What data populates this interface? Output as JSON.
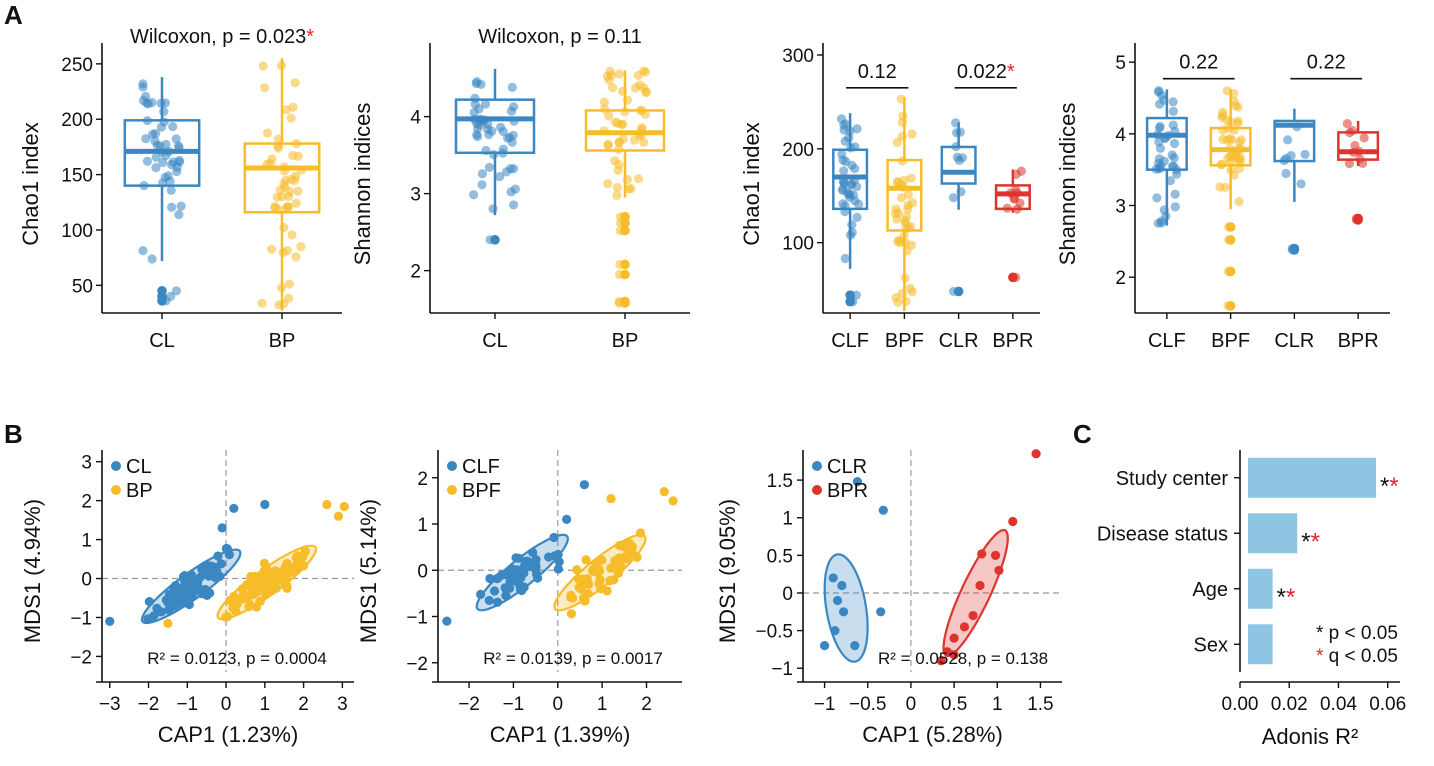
{
  "colors": {
    "CL": "#3a87c2",
    "BP": "#f6bc29",
    "CLF": "#3a87c2",
    "BPF": "#f6bc29",
    "CLR": "#3a87c2",
    "BPR": "#dd352d",
    "bar": "#8ec5e3",
    "sig": "#e8232a",
    "ref": "#999999"
  },
  "panel_labels": {
    "A": "A",
    "B": "B",
    "C": "C"
  },
  "chart_data": [
    {
      "id": "A1",
      "type": "box",
      "ylabel": "Chao1 index",
      "title_text": "Wilcoxon, p = 0.023",
      "title_star": "*",
      "ylim": [
        25,
        258
      ],
      "yticks": [
        50,
        100,
        150,
        200,
        250
      ],
      "groups": [
        {
          "label": "CL",
          "color": "CL",
          "q1": 140,
          "median": 171,
          "q3": 199,
          "whisker_low": 72,
          "whisker_high": 238,
          "outliers": [
            45,
            40,
            36
          ],
          "points": 48,
          "spread": [
            72,
            238
          ],
          "seed": 11
        },
        {
          "label": "BP",
          "color": "BP",
          "q1": 116,
          "median": 156,
          "q3": 178,
          "whisker_low": 27,
          "whisker_high": 255,
          "outliers": [],
          "points": 52,
          "spread": [
            27,
            255
          ],
          "seed": 23
        }
      ],
      "brackets": []
    },
    {
      "id": "A2",
      "type": "box",
      "ylabel": "Shannon indices",
      "title_text": "Wilcoxon, p = 0.11",
      "title_star": "",
      "ylim": [
        1.45,
        4.8
      ],
      "yticks": [
        2,
        3,
        4
      ],
      "groups": [
        {
          "label": "CL",
          "color": "CL",
          "q1": 3.53,
          "median": 3.97,
          "q3": 4.22,
          "whisker_low": 2.72,
          "whisker_high": 4.62,
          "outliers": [
            2.4
          ],
          "points": 48,
          "spread": [
            2.72,
            4.62
          ],
          "seed": 37
        },
        {
          "label": "BP",
          "color": "BP",
          "q1": 3.56,
          "median": 3.79,
          "q3": 4.08,
          "whisker_low": 2.95,
          "whisker_high": 4.6,
          "outliers": [
            2.7,
            2.62,
            2.52,
            2.08,
            1.95,
            1.6,
            1.58
          ],
          "points": 50,
          "spread": [
            2.95,
            4.6
          ],
          "seed": 41
        }
      ],
      "brackets": []
    },
    {
      "id": "A3",
      "type": "box",
      "ylabel": "Chao1 index",
      "title_text": "",
      "title_star": "",
      "ylim": [
        25,
        300
      ],
      "yticks": [
        100,
        200,
        300
      ],
      "groups": [
        {
          "label": "CLF",
          "color": "CLF",
          "q1": 136,
          "median": 170,
          "q3": 199,
          "whisker_low": 72,
          "whisker_high": 238,
          "outliers": [
            44,
            37
          ],
          "points": 40,
          "spread": [
            72,
            238
          ],
          "seed": 53
        },
        {
          "label": "BPF",
          "color": "BPF",
          "q1": 113,
          "median": 158,
          "q3": 188,
          "whisker_low": 27,
          "whisker_high": 255,
          "outliers": [],
          "points": 42,
          "spread": [
            27,
            255
          ],
          "seed": 67
        },
        {
          "label": "CLR",
          "color": "CLR",
          "q1": 163,
          "median": 175,
          "q3": 202,
          "whisker_low": 135,
          "whisker_high": 228,
          "outliers": [
            48
          ],
          "points": 9,
          "spread": [
            135,
            228
          ],
          "seed": 71
        },
        {
          "label": "BPR",
          "color": "BPR",
          "q1": 136,
          "median": 152,
          "q3": 161,
          "whisker_low": 132,
          "whisker_high": 178,
          "outliers": [
            63
          ],
          "points": 10,
          "spread": [
            132,
            178
          ],
          "seed": 83
        }
      ],
      "brackets": [
        {
          "from": 0,
          "to": 1,
          "y": 265,
          "text": "0.12",
          "star": ""
        },
        {
          "from": 2,
          "to": 3,
          "y": 265,
          "text": "0.022",
          "star": "*"
        }
      ]
    },
    {
      "id": "A4",
      "type": "box",
      "ylabel": "Shannon indices",
      "title_text": "",
      "title_star": "",
      "ylim": [
        1.5,
        5.1
      ],
      "yticks": [
        2,
        3,
        4,
        5
      ],
      "groups": [
        {
          "label": "CLF",
          "color": "CLF",
          "q1": 3.5,
          "median": 3.98,
          "q3": 4.22,
          "whisker_low": 2.72,
          "whisker_high": 4.62,
          "outliers": [],
          "points": 40,
          "spread": [
            2.72,
            4.62
          ],
          "seed": 97
        },
        {
          "label": "BPF",
          "color": "BPF",
          "q1": 3.56,
          "median": 3.78,
          "q3": 4.08,
          "whisker_low": 2.95,
          "whisker_high": 4.62,
          "outliers": [
            2.7,
            2.52,
            2.08,
            1.6
          ],
          "points": 42,
          "spread": [
            2.95,
            4.62
          ],
          "seed": 101
        },
        {
          "label": "CLR",
          "color": "CLR",
          "q1": 3.62,
          "median": 4.12,
          "q3": 4.18,
          "whisker_low": 3.05,
          "whisker_high": 4.35,
          "outliers": [
            2.4,
            2.38
          ],
          "points": 8,
          "spread": [
            3.05,
            4.35
          ],
          "seed": 113
        },
        {
          "label": "BPR",
          "color": "BPR",
          "q1": 3.64,
          "median": 3.75,
          "q3": 4.02,
          "whisker_low": 3.55,
          "whisker_high": 4.18,
          "outliers": [
            2.82,
            2.8
          ],
          "points": 10,
          "spread": [
            3.55,
            4.18
          ],
          "seed": 127
        }
      ],
      "brackets": [
        {
          "from": 0,
          "to": 1,
          "y": 4.77,
          "text": "0.22",
          "star": ""
        },
        {
          "from": 2,
          "to": 3,
          "y": 4.77,
          "text": "0.22",
          "star": ""
        }
      ]
    },
    {
      "id": "B1",
      "type": "scatter",
      "xlabel": "CAP1 (1.23%)",
      "ylabel": "MDS1 (4.94%)",
      "xlim": [
        -3.2,
        3.3
      ],
      "ylim": [
        -2.4,
        3.3
      ],
      "xticks": [
        -3,
        -2,
        -1,
        0,
        1,
        2,
        3
      ],
      "yticks": [
        -2,
        -1,
        0,
        1,
        2,
        3
      ],
      "stat_text": "R² = 0.0123, p = 0.0004",
      "legend": [
        "CL",
        "BP"
      ],
      "groups": [
        {
          "label": "CL",
          "color": "CL",
          "n": 95,
          "center": [
            -0.9,
            -0.2
          ],
          "direction": [
            1,
            0.72
          ],
          "spread_major": 0.95,
          "spread_minor": 0.33,
          "seed": 5,
          "extra_points": [
            [
              -3.0,
              -1.1
            ],
            [
              1.0,
              1.9
            ],
            [
              0.2,
              1.8
            ],
            [
              -0.1,
              1.3
            ]
          ],
          "ellipse": {
            "cx": -0.9,
            "cy": -0.2,
            "rx": 1.55,
            "ry": 0.33,
            "angle_deg": 36
          }
        },
        {
          "label": "BP",
          "color": "BP",
          "n": 95,
          "center": [
            1.05,
            -0.1
          ],
          "direction": [
            1,
            0.72
          ],
          "spread_major": 0.95,
          "spread_minor": 0.33,
          "seed": 9,
          "extra_points": [
            [
              3.05,
              1.85
            ],
            [
              2.9,
              1.6
            ],
            [
              -1.5,
              -1.15
            ],
            [
              2.6,
              1.9
            ]
          ],
          "ellipse": {
            "cx": 1.05,
            "cy": -0.1,
            "rx": 1.55,
            "ry": 0.33,
            "angle_deg": 36
          }
        }
      ]
    },
    {
      "id": "B2",
      "type": "scatter",
      "xlabel": "CAP1 (1.39%)",
      "ylabel": "MDS1 (5.14%)",
      "xlim": [
        -2.7,
        2.8
      ],
      "ylim": [
        -2.2,
        2.6
      ],
      "xticks": [
        -2,
        -1,
        0,
        1,
        2
      ],
      "yticks": [
        -2,
        -1,
        0,
        1,
        2
      ],
      "stat_text": "R² = 0.0139, p = 0.0017",
      "legend": [
        "CLF",
        "BPF"
      ],
      "groups": [
        {
          "label": "CLF",
          "color": "CLF",
          "n": 50,
          "center": [
            -0.8,
            -0.05
          ],
          "direction": [
            1,
            0.78
          ],
          "spread_major": 0.85,
          "spread_minor": 0.3,
          "seed": 13,
          "extra_points": [
            [
              -2.5,
              -1.1
            ],
            [
              0.6,
              1.85
            ],
            [
              0.2,
              1.1
            ]
          ],
          "ellipse": {
            "cx": -0.8,
            "cy": -0.05,
            "rx": 1.3,
            "ry": 0.3,
            "angle_deg": 40
          }
        },
        {
          "label": "BPF",
          "color": "BPF",
          "n": 50,
          "center": [
            0.95,
            -0.05
          ],
          "direction": [
            1,
            0.78
          ],
          "spread_major": 0.85,
          "spread_minor": 0.3,
          "seed": 17,
          "extra_points": [
            [
              2.6,
              1.5
            ],
            [
              2.4,
              1.7
            ],
            [
              1.2,
              1.55
            ]
          ],
          "ellipse": {
            "cx": 0.95,
            "cy": -0.05,
            "rx": 1.3,
            "ry": 0.3,
            "angle_deg": 40
          }
        }
      ]
    },
    {
      "id": "B3",
      "type": "scatter",
      "xlabel": "CAP1 (5.28%)",
      "ylabel": "MDS1 (9.05%)",
      "xlim": [
        -1.25,
        1.75
      ],
      "ylim": [
        -1.05,
        1.9
      ],
      "xticks": [
        -1.0,
        -0.5,
        0.0,
        0.5,
        1.0,
        1.5
      ],
      "yticks": [
        -1.0,
        -0.5,
        0.0,
        0.5,
        1.0,
        1.5
      ],
      "stat_text": "R² = 0.0528, p = 0.138",
      "legend": [
        "CLR",
        "BPR"
      ],
      "groups": [
        {
          "label": "CLR",
          "color": "CLR",
          "n": 0,
          "center": [
            -0.75,
            -0.2
          ],
          "direction": [
            0,
            1
          ],
          "spread_major": 0,
          "spread_minor": 0,
          "seed": 0,
          "extra_points": [
            [
              -0.62,
              1.48
            ],
            [
              -0.32,
              1.1
            ],
            [
              -0.9,
              0.2
            ],
            [
              -0.8,
              0.1
            ],
            [
              -0.85,
              -0.1
            ],
            [
              -0.78,
              -0.25
            ],
            [
              -0.35,
              -0.25
            ],
            [
              -0.88,
              -0.5
            ],
            [
              -1.0,
              -0.7
            ],
            [
              -0.65,
              -0.7
            ]
          ],
          "ellipse": {
            "cx": -0.75,
            "cy": -0.2,
            "rx": 0.23,
            "ry": 0.72,
            "angle_deg": 8
          }
        },
        {
          "label": "BPR",
          "color": "BPR",
          "n": 0,
          "center": [
            0.75,
            0.0
          ],
          "direction": [
            0,
            1
          ],
          "spread_major": 0,
          "spread_minor": 0,
          "seed": 0,
          "extra_points": [
            [
              1.45,
              1.85
            ],
            [
              1.18,
              0.95
            ],
            [
              0.82,
              0.52
            ],
            [
              0.98,
              0.5
            ],
            [
              1.02,
              0.3
            ],
            [
              0.8,
              0.1
            ],
            [
              0.72,
              -0.3
            ],
            [
              0.62,
              -0.45
            ],
            [
              0.5,
              -0.6
            ],
            [
              0.42,
              -0.78
            ],
            [
              0.35,
              -0.9
            ],
            [
              0.5,
              -0.82
            ]
          ],
          "ellipse": {
            "cx": 0.75,
            "cy": 0.0,
            "rx": 0.17,
            "ry": 0.9,
            "angle_deg": -22
          }
        }
      ]
    },
    {
      "id": "C",
      "type": "bar",
      "orientation": "horizontal",
      "xlabel": "Adonis R²",
      "xlim": [
        0,
        0.065
      ],
      "xticks": [
        "0.00",
        "0.02",
        "0.04",
        "0.06"
      ],
      "categories": [
        "Study center",
        "Disease status",
        "Age",
        "Sex"
      ],
      "values": [
        0.052,
        0.02,
        0.01,
        0.01
      ],
      "sig_black": [
        "*",
        "*",
        "*",
        ""
      ],
      "sig_red": [
        "*",
        "*",
        "*",
        ""
      ],
      "legend_lines": [
        {
          "star": "*",
          "text": " p < 0.05",
          "star_color": "black"
        },
        {
          "star": "*",
          "text": " q < 0.05",
          "star_color": "red"
        }
      ]
    }
  ]
}
